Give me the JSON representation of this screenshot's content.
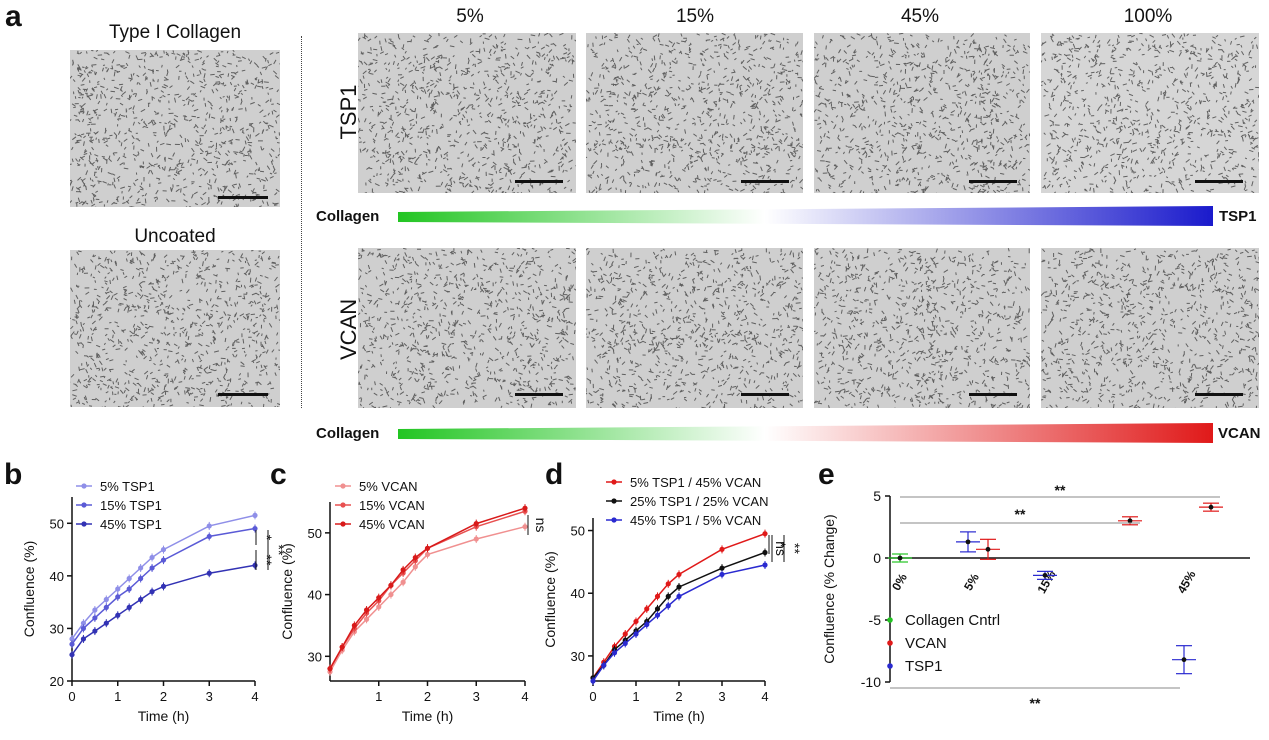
{
  "panel_letters": {
    "a": "a",
    "b": "b",
    "c": "c",
    "d": "d",
    "e": "e"
  },
  "panel_a": {
    "left_titles": [
      "Type I Collagen",
      "Uncoated"
    ],
    "column_headers": [
      "5%",
      "15%",
      "45%",
      "100%"
    ],
    "row_labels": [
      "TSP1",
      "VCAN"
    ],
    "gradient_top": {
      "left": "Collagen",
      "right": "TSP1",
      "left_color": "#22c522",
      "right_color": "#1a1acc"
    },
    "gradient_bottom": {
      "left": "Collagen",
      "right": "VCAN",
      "left_color": "#22c522",
      "right_color": "#e01919"
    }
  },
  "chart_data": [
    {
      "panel": "b",
      "type": "line",
      "xlabel": "Time (h)",
      "ylabel": "Confluence (%)",
      "xlim": [
        0,
        4
      ],
      "ylim": [
        20,
        55
      ],
      "xticks": [
        "0",
        "1",
        "2",
        "3",
        "4"
      ],
      "yticks": [
        "20",
        "30",
        "40",
        "50"
      ],
      "x": [
        0,
        0.25,
        0.5,
        0.75,
        1,
        1.25,
        1.5,
        1.75,
        2,
        3,
        4
      ],
      "series": [
        {
          "name": "5% TSP1",
          "color": "#8f8fe8",
          "values": [
            28,
            31,
            33.5,
            35.5,
            37.5,
            39.5,
            41.5,
            43.5,
            45,
            49.5,
            51.5
          ]
        },
        {
          "name": "15% TSP1",
          "color": "#5a5ad6",
          "values": [
            27,
            30,
            32,
            34,
            36,
            37.5,
            39.5,
            41.5,
            43,
            47.5,
            49
          ]
        },
        {
          "name": "45% TSP1",
          "color": "#3232b4",
          "values": [
            25,
            28,
            29.5,
            31,
            32.5,
            34,
            35.5,
            37,
            38,
            40.5,
            42
          ]
        }
      ],
      "annotations": [
        "*",
        "**",
        "**"
      ]
    },
    {
      "panel": "c",
      "type": "line",
      "xlabel": "Time (h)",
      "ylabel": "Confluence (%)",
      "xlim": [
        0,
        4
      ],
      "ylim": [
        26,
        55
      ],
      "xticks": [
        "1",
        "2",
        "3",
        "4"
      ],
      "yticks": [
        "30",
        "40",
        "50"
      ],
      "x": [
        0,
        0.25,
        0.5,
        0.75,
        1,
        1.25,
        1.5,
        1.75,
        2,
        3,
        4
      ],
      "series": [
        {
          "name": "5% VCAN",
          "color": "#f09090",
          "values": [
            27.5,
            31,
            34,
            36,
            38,
            40,
            42,
            44.5,
            46.5,
            49,
            51
          ]
        },
        {
          "name": "15% VCAN",
          "color": "#e85050",
          "values": [
            28,
            31.5,
            34.5,
            37,
            39,
            41.5,
            43.5,
            45.5,
            47.5,
            51,
            53.5
          ]
        },
        {
          "name": "45% VCAN",
          "color": "#d81a1a",
          "values": [
            28,
            31.5,
            35,
            37.5,
            39.5,
            41.5,
            44,
            46,
            47.5,
            51.5,
            54
          ]
        }
      ],
      "annotations": [
        "ns"
      ]
    },
    {
      "panel": "d",
      "type": "line",
      "xlabel": "Time (h)",
      "ylabel": "Confluence (%)",
      "xlim": [
        0,
        4
      ],
      "ylim": [
        26,
        52
      ],
      "xticks": [
        "0",
        "1",
        "2",
        "3",
        "4"
      ],
      "yticks": [
        "30",
        "40",
        "50"
      ],
      "x": [
        0,
        0.25,
        0.5,
        0.75,
        1,
        1.25,
        1.5,
        1.75,
        2,
        3,
        4
      ],
      "series": [
        {
          "name": "5% TSP1 / 45% VCAN",
          "color": "#e01919",
          "values": [
            26.5,
            29,
            31.5,
            33.5,
            35.5,
            37.5,
            39.5,
            41.5,
            43,
            47,
            49.5
          ]
        },
        {
          "name": "25% TSP1 / 25% VCAN",
          "color": "#111111",
          "values": [
            26.5,
            28.5,
            31,
            32.5,
            34,
            35.5,
            37.5,
            39.5,
            41,
            44,
            46.5
          ]
        },
        {
          "name": "45% TSP1 / 5% VCAN",
          "color": "#2a2ad0",
          "values": [
            26,
            28.5,
            30.5,
            32,
            33.5,
            35,
            36.5,
            38,
            39.5,
            43,
            44.5
          ]
        }
      ],
      "annotations": [
        "*",
        "ns",
        "**"
      ]
    },
    {
      "panel": "e",
      "type": "scatter",
      "ylabel": "Confluence (% Change)",
      "ylim": [
        -10,
        5
      ],
      "yticks": [
        "5",
        "0",
        "-5",
        "-10"
      ],
      "categories": [
        "0%",
        "5%",
        "15%",
        "45%"
      ],
      "series": [
        {
          "name": "Collagen Cntrl",
          "color": "#22c522",
          "points": [
            {
              "category": "0%",
              "value": 0
            }
          ]
        },
        {
          "name": "VCAN",
          "color": "#e01919",
          "points": [
            {
              "category": "5%",
              "value": 0.7
            },
            {
              "category": "15%",
              "value": 3.0
            },
            {
              "category": "45%",
              "value": 4.1
            }
          ]
        },
        {
          "name": "TSP1",
          "color": "#2a2ad0",
          "points": [
            {
              "category": "5%",
              "value": 1.3
            },
            {
              "category": "15%",
              "value": -1.4
            },
            {
              "category": "45%",
              "value": -8.2
            }
          ]
        }
      ],
      "annotations": [
        "**",
        "**",
        "**"
      ]
    }
  ]
}
